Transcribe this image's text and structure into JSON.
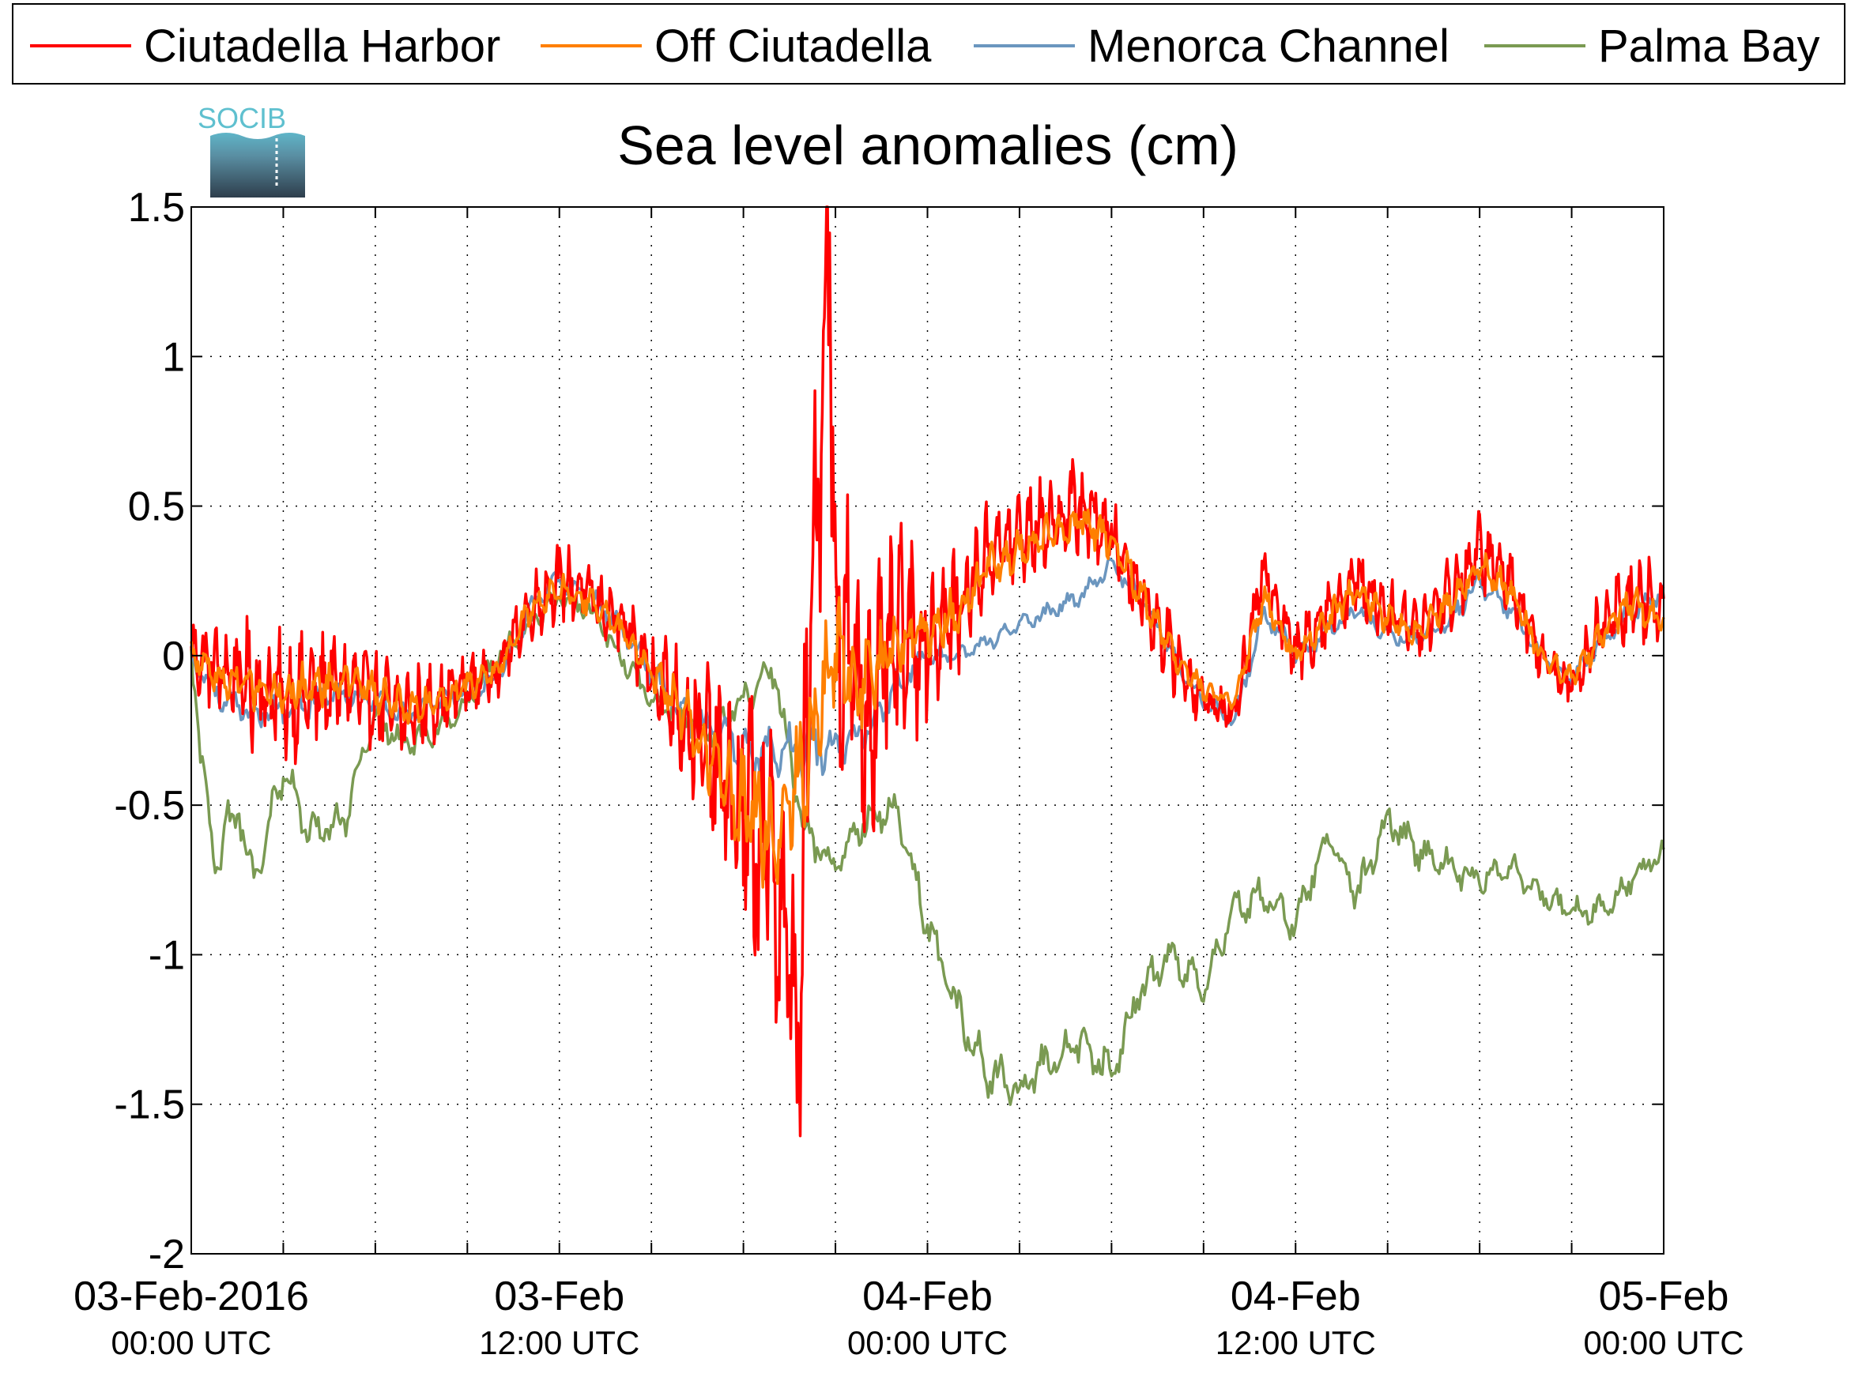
{
  "chart_data": {
    "type": "line",
    "title": "Sea level anomalies (cm)",
    "logo_text": "SOCIB",
    "xlabel": "",
    "ylabel": "",
    "xlim": [
      "2016-02-03T00:00",
      "2016-02-05T00:00"
    ],
    "ylim": [
      -2,
      1.5
    ],
    "yticks": [
      -2,
      -1.5,
      -1,
      -0.5,
      0,
      0.5,
      1,
      1.5
    ],
    "ytick_labels": [
      "-2",
      "-1.5",
      "-1",
      "-0.5",
      "0",
      "0.5",
      "1",
      "1.5"
    ],
    "xticks": [
      {
        "t": "2016-02-03T00:00",
        "line1": "03-Feb-2016",
        "line2": "00:00 UTC"
      },
      {
        "t": "2016-02-03T12:00",
        "line1": "03-Feb",
        "line2": "12:00 UTC"
      },
      {
        "t": "2016-02-04T00:00",
        "line1": "04-Feb",
        "line2": "00:00 UTC"
      },
      {
        "t": "2016-02-04T12:00",
        "line1": "04-Feb",
        "line2": "12:00 UTC"
      },
      {
        "t": "2016-02-05T00:00",
        "line1": "05-Feb",
        "line2": "00:00 UTC"
      }
    ],
    "minor_xticks_hours": [
      3,
      6,
      9,
      15,
      18,
      21,
      27,
      30,
      33,
      39,
      42,
      45
    ],
    "grid": true,
    "legend_position": "top, outside plot",
    "series": [
      {
        "name": "Ciutadella Harbor",
        "color": "#ff0000",
        "hours": [
          0,
          1,
          2,
          3,
          4,
          5,
          6,
          7,
          8,
          9,
          10,
          11,
          12,
          13,
          14,
          15,
          16,
          17,
          18,
          19,
          19.9,
          20,
          20.8,
          21,
          22,
          23,
          24,
          25,
          26,
          27,
          28,
          29,
          30,
          31,
          32,
          33,
          34,
          35,
          36,
          37,
          38,
          39,
          40,
          41,
          42,
          43,
          44,
          45,
          46,
          47,
          48
        ],
        "values": [
          0.0,
          -0.05,
          -0.1,
          -0.15,
          -0.12,
          -0.1,
          -0.15,
          -0.2,
          -0.15,
          -0.1,
          -0.05,
          0.15,
          0.25,
          0.2,
          0.1,
          -0.05,
          -0.2,
          -0.35,
          -0.55,
          -0.7,
          -1.3,
          -0.4,
          1.5,
          0.1,
          -0.2,
          0.05,
          0.05,
          0.15,
          0.35,
          0.4,
          0.45,
          0.5,
          0.4,
          0.2,
          0.0,
          -0.15,
          -0.2,
          0.3,
          0.0,
          0.15,
          0.25,
          0.15,
          0.1,
          0.2,
          0.35,
          0.25,
          0.0,
          -0.1,
          0.1,
          0.2,
          0.15
        ],
        "noise_amplitude": [
          0.12,
          0.15,
          0.2,
          0.2,
          0.18,
          0.15,
          0.15,
          0.15,
          0.12,
          0.1,
          0.08,
          0.1,
          0.12,
          0.1,
          0.1,
          0.15,
          0.2,
          0.3,
          0.45,
          0.5,
          0.4,
          0.5,
          0.6,
          0.55,
          0.45,
          0.35,
          0.25,
          0.2,
          0.15,
          0.15,
          0.15,
          0.15,
          0.12,
          0.12,
          0.12,
          0.08,
          0.08,
          0.12,
          0.1,
          0.12,
          0.12,
          0.1,
          0.1,
          0.12,
          0.12,
          0.1,
          0.08,
          0.08,
          0.12,
          0.15,
          0.15
        ]
      },
      {
        "name": "Off Ciutadella",
        "color": "#ff7f00",
        "hours": [
          0,
          1,
          2,
          3,
          4,
          5,
          6,
          7,
          8,
          9,
          10,
          11,
          12,
          13,
          14,
          15,
          16,
          17,
          18,
          19,
          20,
          21,
          22,
          23,
          24,
          25,
          26,
          27,
          28,
          29,
          30,
          31,
          32,
          33,
          34,
          35,
          36,
          37,
          38,
          39,
          40,
          41,
          42,
          43,
          44,
          45,
          46,
          47,
          48
        ],
        "values": [
          0.0,
          -0.08,
          -0.1,
          -0.12,
          -0.1,
          -0.08,
          -0.12,
          -0.18,
          -0.15,
          -0.1,
          -0.05,
          0.15,
          0.22,
          0.18,
          0.08,
          -0.05,
          -0.2,
          -0.35,
          -0.5,
          -0.6,
          -0.35,
          0.0,
          -0.1,
          0.05,
          0.08,
          0.15,
          0.3,
          0.35,
          0.4,
          0.45,
          0.38,
          0.2,
          0.0,
          -0.12,
          -0.15,
          0.2,
          0.0,
          0.12,
          0.22,
          0.12,
          0.08,
          0.18,
          0.3,
          0.22,
          0.0,
          -0.08,
          0.08,
          0.18,
          0.12
        ],
        "noise_amplitude": [
          0.06,
          0.07,
          0.08,
          0.08,
          0.07,
          0.06,
          0.06,
          0.06,
          0.05,
          0.05,
          0.04,
          0.05,
          0.05,
          0.05,
          0.05,
          0.06,
          0.1,
          0.12,
          0.18,
          0.2,
          0.22,
          0.2,
          0.15,
          0.1,
          0.08,
          0.08,
          0.07,
          0.07,
          0.07,
          0.06,
          0.06,
          0.06,
          0.05,
          0.04,
          0.04,
          0.05,
          0.05,
          0.05,
          0.05,
          0.05,
          0.05,
          0.05,
          0.05,
          0.05,
          0.04,
          0.04,
          0.05,
          0.06,
          0.06
        ]
      },
      {
        "name": "Menorca Channel",
        "color": "#6b96bf",
        "hours": [
          0,
          1,
          2,
          3,
          4,
          5,
          6,
          7,
          8,
          9,
          10,
          11,
          12,
          13,
          14,
          15,
          16,
          17,
          18,
          19,
          20,
          21,
          22,
          23,
          24,
          25,
          26,
          27,
          28,
          29,
          30,
          31,
          32,
          33,
          34,
          35,
          36,
          37,
          38,
          39,
          40,
          41,
          42,
          43,
          44,
          45,
          46,
          47,
          48
        ],
        "values": [
          0.0,
          -0.15,
          -0.2,
          -0.18,
          -0.15,
          -0.12,
          -0.15,
          -0.2,
          -0.15,
          -0.12,
          -0.08,
          0.15,
          0.25,
          0.2,
          0.1,
          -0.05,
          -0.2,
          -0.25,
          -0.3,
          -0.35,
          -0.3,
          -0.3,
          -0.25,
          -0.1,
          0.0,
          0.0,
          0.05,
          0.1,
          0.15,
          0.2,
          0.3,
          0.2,
          0.0,
          -0.15,
          -0.22,
          0.15,
          0.0,
          0.08,
          0.15,
          0.08,
          0.05,
          0.12,
          0.25,
          0.15,
          0.0,
          -0.08,
          0.05,
          0.15,
          0.22
        ],
        "noise_amplitude": [
          0.04,
          0.05,
          0.05,
          0.05,
          0.05,
          0.04,
          0.04,
          0.04,
          0.04,
          0.04,
          0.03,
          0.04,
          0.04,
          0.04,
          0.04,
          0.05,
          0.06,
          0.07,
          0.08,
          0.09,
          0.1,
          0.08,
          0.06,
          0.05,
          0.04,
          0.03,
          0.03,
          0.03,
          0.03,
          0.03,
          0.03,
          0.03,
          0.03,
          0.03,
          0.03,
          0.04,
          0.04,
          0.04,
          0.04,
          0.04,
          0.03,
          0.04,
          0.04,
          0.04,
          0.03,
          0.03,
          0.04,
          0.04,
          0.04
        ]
      },
      {
        "name": "Palma Bay",
        "color": "#7a9a52",
        "hours": [
          0,
          0.7,
          1.5,
          2,
          3,
          4,
          5,
          6,
          7,
          8,
          9,
          10,
          11,
          12,
          13,
          14,
          15,
          16,
          17,
          18,
          19,
          20,
          21,
          22,
          23,
          24,
          25,
          26,
          27,
          28,
          29,
          30,
          31,
          32,
          33,
          34,
          35,
          36,
          37,
          38,
          39,
          40,
          41,
          42,
          43,
          44,
          45,
          46,
          47,
          48
        ],
        "values": [
          0.0,
          -0.7,
          -0.5,
          -0.75,
          -0.4,
          -0.6,
          -0.55,
          -0.2,
          -0.3,
          -0.25,
          -0.15,
          0.0,
          0.1,
          0.2,
          0.15,
          0.0,
          -0.15,
          -0.2,
          -0.25,
          -0.15,
          -0.05,
          -0.6,
          -0.7,
          -0.55,
          -0.5,
          -0.9,
          -1.2,
          -1.4,
          -1.45,
          -1.35,
          -1.3,
          -1.4,
          -1.1,
          -1.0,
          -1.1,
          -0.85,
          -0.8,
          -0.9,
          -0.6,
          -0.8,
          -0.55,
          -0.65,
          -0.7,
          -0.75,
          -0.7,
          -0.8,
          -0.85,
          -0.85,
          -0.75,
          -0.65
        ],
        "noise_amplitude": [
          0.05,
          0.08,
          0.08,
          0.08,
          0.07,
          0.07,
          0.06,
          0.05,
          0.05,
          0.04,
          0.04,
          0.04,
          0.04,
          0.04,
          0.04,
          0.04,
          0.04,
          0.04,
          0.05,
          0.05,
          0.06,
          0.06,
          0.06,
          0.06,
          0.06,
          0.07,
          0.08,
          0.08,
          0.08,
          0.07,
          0.07,
          0.07,
          0.07,
          0.07,
          0.06,
          0.06,
          0.06,
          0.06,
          0.06,
          0.06,
          0.06,
          0.06,
          0.06,
          0.05,
          0.05,
          0.05,
          0.05,
          0.05,
          0.05,
          0.05
        ]
      }
    ]
  }
}
